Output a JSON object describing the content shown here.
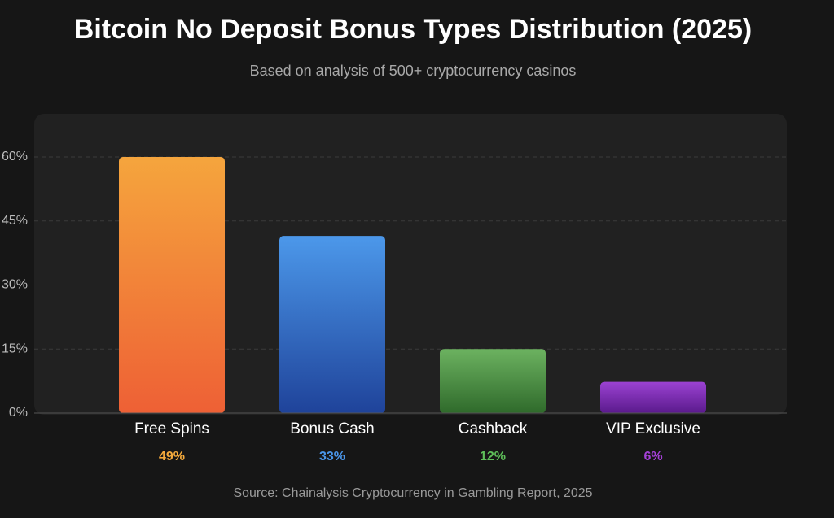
{
  "chart_data": {
    "type": "bar",
    "title": "Bitcoin No Deposit Bonus Types Distribution (2025)",
    "subtitle": "Based on analysis of 500+ cryptocurrency casinos",
    "source": "Source: Chainalysis Cryptocurrency in Gambling Report, 2025",
    "categories": [
      "Free Spins",
      "Bonus Cash",
      "Cashback",
      "VIP Exclusive"
    ],
    "values": [
      60,
      41.5,
      15,
      7.3
    ],
    "percent_labels": [
      "49%",
      "33%",
      "12%",
      "6%"
    ],
    "colors_top": [
      "#f5a53d",
      "#4c98ea",
      "#6cb260",
      "#9b42d2"
    ],
    "colors_bottom": [
      "#ee6035",
      "#1f439a",
      "#2f6a2b",
      "#5a1a8c"
    ],
    "label_colors": [
      "#f4aa3c",
      "#4a95e8",
      "#5fbf5a",
      "#a540d8"
    ],
    "ylim": [
      0,
      70
    ],
    "yticks": [
      {
        "value": 0,
        "label": "0%"
      },
      {
        "value": 15,
        "label": "15%"
      },
      {
        "value": 30,
        "label": "30%"
      },
      {
        "value": 45,
        "label": "45%"
      },
      {
        "value": 60,
        "label": "60%"
      }
    ],
    "grid": true
  }
}
